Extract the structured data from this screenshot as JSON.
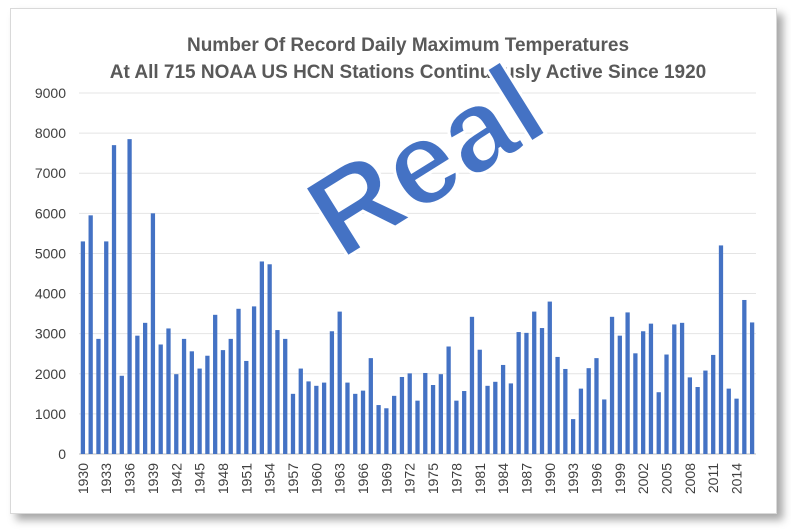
{
  "chart_data": {
    "type": "bar",
    "title": "Number Of Record Daily Maximum Temperatures",
    "subtitle": "At All 715 NOAA US HCN Stations Continuously Active Since 1920",
    "annotation": "Real",
    "bar_color": "#4472c4",
    "grid": true,
    "ylim": [
      0,
      9000
    ],
    "yticks": [
      0,
      1000,
      2000,
      3000,
      4000,
      5000,
      6000,
      7000,
      8000,
      9000
    ],
    "xtick_labels": [
      "1930",
      "1933",
      "1936",
      "1939",
      "1942",
      "1945",
      "1948",
      "1951",
      "1954",
      "1957",
      "1960",
      "1963",
      "1966",
      "1969",
      "1972",
      "1975",
      "1978",
      "1981",
      "1984",
      "1987",
      "1990",
      "1993",
      "1996",
      "1999",
      "2002",
      "2005",
      "2008",
      "2011",
      "2014"
    ],
    "categories": [
      1930,
      1931,
      1932,
      1933,
      1934,
      1935,
      1936,
      1937,
      1938,
      1939,
      1940,
      1941,
      1942,
      1943,
      1944,
      1945,
      1946,
      1947,
      1948,
      1949,
      1950,
      1951,
      1952,
      1953,
      1954,
      1955,
      1956,
      1957,
      1958,
      1959,
      1960,
      1961,
      1962,
      1963,
      1964,
      1965,
      1966,
      1967,
      1968,
      1969,
      1970,
      1971,
      1972,
      1973,
      1974,
      1975,
      1976,
      1977,
      1978,
      1979,
      1980,
      1981,
      1982,
      1983,
      1984,
      1985,
      1986,
      1987,
      1988,
      1989,
      1990,
      1991,
      1992,
      1993,
      1994,
      1995,
      1996,
      1997,
      1998,
      1999,
      2000,
      2001,
      2002,
      2003,
      2004,
      2005,
      2006,
      2007,
      2008,
      2009,
      2010,
      2011,
      2012,
      2013,
      2014,
      2015,
      2016
    ],
    "values": [
      5300,
      5950,
      2870,
      5300,
      7700,
      1950,
      7850,
      2950,
      3270,
      6000,
      2730,
      3130,
      1990,
      2870,
      2560,
      2130,
      2450,
      3470,
      2590,
      2870,
      3620,
      2320,
      3680,
      4800,
      4730,
      3090,
      2870,
      1500,
      2130,
      1810,
      1700,
      1780,
      3060,
      3550,
      1780,
      1500,
      1580,
      2390,
      1220,
      1140,
      1450,
      1920,
      2010,
      1330,
      2020,
      1720,
      1990,
      2680,
      1330,
      1570,
      3420,
      2600,
      1700,
      1800,
      2220,
      1760,
      3040,
      3020,
      3550,
      3140,
      3800,
      2420,
      2120,
      870,
      1630,
      2140,
      2390,
      1360,
      3420,
      2950,
      3530,
      2510,
      3060,
      3250,
      1540,
      2480,
      3230,
      3270,
      1910,
      1670,
      2080,
      2470,
      5200,
      1630,
      1380,
      3840,
      3280
    ]
  }
}
